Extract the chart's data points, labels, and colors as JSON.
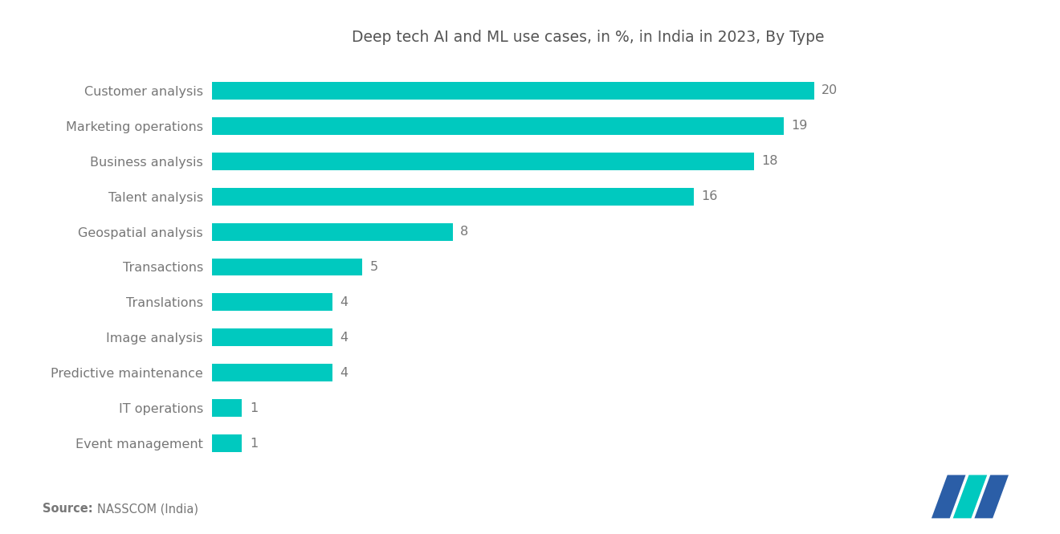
{
  "title": "Deep tech AI and ML use cases, in %, in India in 2023, By Type",
  "categories": [
    "Event management",
    "IT operations",
    "Predictive maintenance",
    "Image analysis",
    "Translations",
    "Transactions",
    "Geospatial analysis",
    "Talent analysis",
    "Business analysis",
    "Marketing operations",
    "Customer analysis"
  ],
  "values": [
    1,
    1,
    4,
    4,
    4,
    5,
    8,
    16,
    18,
    19,
    20
  ],
  "bar_color": "#00C9BF",
  "title_color": "#555555",
  "label_color": "#777777",
  "value_color": "#777777",
  "background_color": "#ffffff",
  "title_fontsize": 13.5,
  "label_fontsize": 11.5,
  "value_fontsize": 11.5,
  "source_fontsize": 10.5,
  "logo_blue": "#2B5EA7",
  "logo_teal": "#00C9BF"
}
